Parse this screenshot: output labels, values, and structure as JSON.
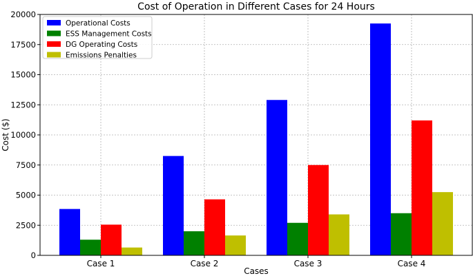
{
  "chart_data": {
    "type": "bar",
    "title": "Cost of Operation in Different Cases for 24 Hours",
    "xlabel": "Cases",
    "ylabel": "Cost ($)",
    "categories": [
      "Case 1",
      "Case 2",
      "Case 3",
      "Case 4"
    ],
    "ylim": [
      0,
      20000
    ],
    "yticks": [
      0,
      2500,
      5000,
      7500,
      10000,
      12500,
      15000,
      17500,
      20000
    ],
    "ytick_labels": [
      "0",
      "2500",
      "5000",
      "7500",
      "10000",
      "12500",
      "15000",
      "17500",
      "20000"
    ],
    "grid": true,
    "legend_position": "top-left",
    "series": [
      {
        "name": "Operational Costs",
        "color": "#0000ff",
        "values": [
          3850,
          8250,
          12900,
          19250
        ]
      },
      {
        "name": "ESS Management Costs",
        "color": "#008000",
        "values": [
          1300,
          2000,
          2700,
          3500
        ]
      },
      {
        "name": "DG Operating Costs",
        "color": "#ff0000",
        "values": [
          2550,
          4650,
          7500,
          11200
        ]
      },
      {
        "name": "Emissions Penalties",
        "color": "#bfbf00",
        "values": [
          650,
          1650,
          3400,
          5250
        ]
      }
    ]
  }
}
